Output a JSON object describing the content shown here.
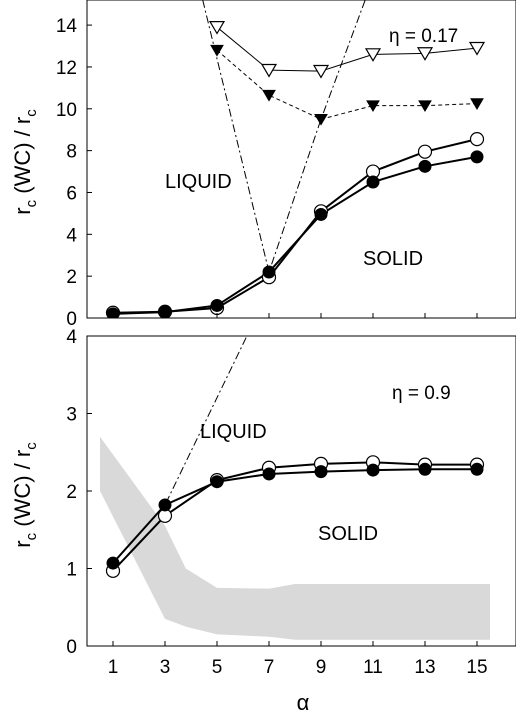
{
  "chart_data": [
    {
      "type": "line",
      "eta_label": "η = 0.17",
      "ylabel": "r_c (WC) / r_c",
      "ylabel_main": "r",
      "ylabel_sub1": "c",
      "ylabel_mid": " (WC) / r",
      "ylabel_sub2": "c",
      "region_labels": {
        "liquid": "LIQUID",
        "solid": "SOLID"
      },
      "xlim": [
        0,
        16.5
      ],
      "ylim": [
        0,
        15.2
      ],
      "yticks": [
        0,
        2,
        4,
        6,
        8,
        10,
        12,
        14
      ],
      "xticks": [
        1,
        3,
        5,
        7,
        9,
        11,
        13,
        15
      ],
      "series": [
        {
          "marker": "open-circle",
          "line": "solid",
          "x": [
            1,
            3,
            5,
            7,
            9,
            11,
            13,
            15
          ],
          "y": [
            0.25,
            0.3,
            0.48,
            1.95,
            5.1,
            7.0,
            7.95,
            8.55
          ]
        },
        {
          "marker": "filled-circle",
          "line": "solid",
          "x": [
            1,
            3,
            5,
            7,
            9,
            11,
            13,
            15
          ],
          "y": [
            0.2,
            0.28,
            0.6,
            2.2,
            4.95,
            6.5,
            7.25,
            7.7
          ]
        },
        {
          "marker": "open-triangle-down",
          "line": "solid-thin",
          "x": [
            5,
            7,
            9,
            11,
            13,
            15
          ],
          "y": [
            13.9,
            11.85,
            11.8,
            12.6,
            12.65,
            12.9
          ]
        },
        {
          "marker": "filled-triangle-down",
          "line": "dashed",
          "x": [
            5,
            7,
            9,
            11,
            13,
            15
          ],
          "y": [
            12.8,
            10.65,
            9.5,
            10.15,
            10.15,
            10.25
          ]
        },
        {
          "marker": "none",
          "line": "dash-dot",
          "x": [
            4.45,
            7,
            9,
            10.7
          ],
          "y": [
            15.2,
            2.2,
            9.5,
            15.2
          ]
        }
      ]
    },
    {
      "type": "line",
      "eta_label": "η = 0.9",
      "ylabel": "r_c (WC) / r_c",
      "ylabel_main": "r",
      "ylabel_sub1": "c",
      "ylabel_mid": " (WC) / r",
      "ylabel_sub2": "c",
      "xlabel": "α",
      "region_labels": {
        "liquid": "LIQUID",
        "solid": "SOLID"
      },
      "xlim": [
        0,
        16.5
      ],
      "ylim": [
        0,
        4
      ],
      "yticks": [
        0,
        1,
        2,
        3,
        4
      ],
      "xticks": [
        1,
        3,
        5,
        7,
        9,
        11,
        13,
        15
      ],
      "band": {
        "x": [
          0.5,
          3,
          3.8,
          5,
          7,
          8,
          15.5
        ],
        "upper": [
          2.7,
          1.55,
          1.0,
          0.75,
          0.74,
          0.8,
          0.8
        ],
        "lower": [
          2.0,
          0.35,
          0.25,
          0.15,
          0.12,
          0.08,
          0.08
        ]
      },
      "series": [
        {
          "marker": "open-circle",
          "line": "solid",
          "x": [
            1,
            3,
            5,
            7,
            9,
            11,
            13,
            15
          ],
          "y": [
            0.97,
            1.68,
            2.14,
            2.3,
            2.35,
            2.37,
            2.34,
            2.34
          ]
        },
        {
          "marker": "filled-circle",
          "line": "solid",
          "x": [
            1,
            3,
            5,
            7,
            9,
            11,
            13,
            15
          ],
          "y": [
            1.07,
            1.82,
            2.12,
            2.22,
            2.25,
            2.27,
            2.28,
            2.28
          ]
        },
        {
          "marker": "none",
          "line": "dash-dot",
          "x": [
            1,
            3,
            6.15
          ],
          "y": [
            1.07,
            1.82,
            4.0
          ]
        }
      ]
    }
  ]
}
